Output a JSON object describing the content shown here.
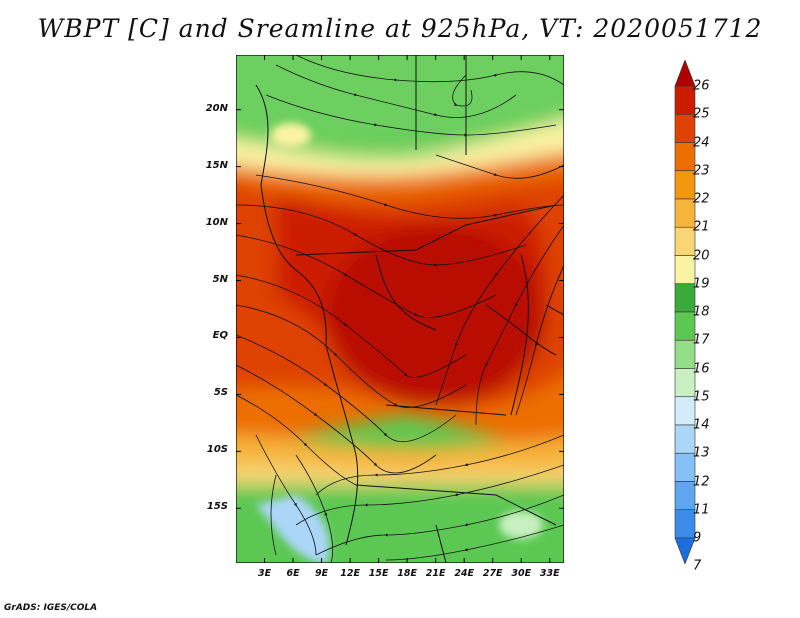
{
  "title": "WBPT [C] and Sreamline at 925hPa, VT: 2020051712",
  "credit": "GrADS: IGES/COLA",
  "map": {
    "lat_labels": [
      "20N",
      "15N",
      "10N",
      "5N",
      "EQ",
      "5S",
      "10S",
      "15S"
    ],
    "lat_values": [
      20,
      15,
      10,
      5,
      0,
      -5,
      -10,
      -15
    ],
    "lon_labels": [
      "3E",
      "6E",
      "9E",
      "12E",
      "15E",
      "18E",
      "21E",
      "24E",
      "27E",
      "30E",
      "33E"
    ],
    "lon_values": [
      3,
      6,
      9,
      12,
      15,
      18,
      21,
      24,
      27,
      30,
      33
    ],
    "lat_range": [
      -19.8,
      24.8
    ],
    "lon_range": [
      0,
      34.5
    ]
  },
  "colorbar": {
    "labels": [
      "7",
      "9",
      "11",
      "12",
      "13",
      "14",
      "15",
      "16",
      "17",
      "18",
      "19",
      "20",
      "21",
      "22",
      "23",
      "24",
      "25",
      "26"
    ],
    "colors": [
      "#1e6ee0",
      "#3a8ce8",
      "#5ea6f0",
      "#86c0f6",
      "#acd6f8",
      "#d2ecfa",
      "#c8f0c0",
      "#94de88",
      "#5cc852",
      "#3aaa3a",
      "#fbf3a4",
      "#f8d676",
      "#f6b43a",
      "#f4960e",
      "#ec6e00",
      "#de4200",
      "#cc1c00",
      "#b00000"
    ]
  }
}
